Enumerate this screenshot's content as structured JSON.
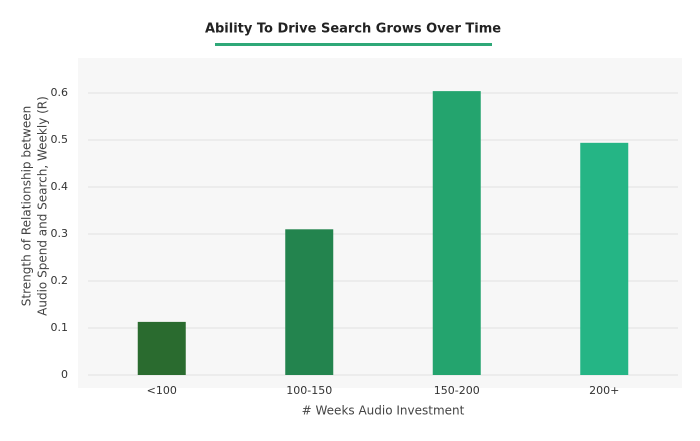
{
  "chart_data": {
    "type": "bar",
    "title": "Ability To Drive Search Grows Over Time",
    "y_label": [
      "Strength of Relationship between",
      "Audio Spend and Search, Weekly (R)"
    ],
    "x_label": "# Weeks Audio Investment",
    "categories": [
      "<100",
      "100-150",
      "150-200",
      "200+"
    ],
    "values": [
      0.113,
      0.31,
      0.604,
      0.494
    ],
    "colors": [
      "#2a6b2f",
      "#23844e",
      "#24a46e",
      "#25b585"
    ],
    "ylim": [
      0,
      0.65
    ],
    "yticks": [
      0,
      0.1,
      0.2,
      0.3,
      0.4,
      0.5,
      0.6
    ],
    "grid": true
  }
}
